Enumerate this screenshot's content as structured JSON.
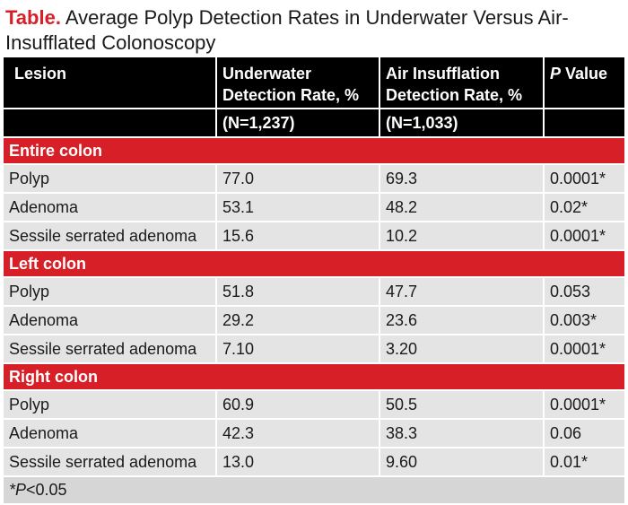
{
  "caption": {
    "lead": "Table.",
    "text": " Average Polyp Detection Rates in Underwater Versus Air-Insufflated Colonoscopy"
  },
  "header": {
    "col1": "Lesion",
    "col2": "Underwater Detection Rate, %",
    "col3": "Air Insufflation Detection Rate, %",
    "col4_italic": "P",
    "col4_rest": " Value",
    "n2": "(N=1,237)",
    "n3": "(N=1,033)"
  },
  "sections": [
    {
      "title": "Entire colon",
      "rows": [
        {
          "lesion": "Polyp",
          "underwater": "77.0",
          "air": "69.3",
          "p": "0.0001*"
        },
        {
          "lesion": "Adenoma",
          "underwater": "53.1",
          "air": "48.2",
          "p": "0.02*"
        },
        {
          "lesion": "Sessile serrated adenoma",
          "underwater": "15.6",
          "air": "10.2",
          "p": "0.0001*"
        }
      ]
    },
    {
      "title": "Left colon",
      "rows": [
        {
          "lesion": "Polyp",
          "underwater": "51.8",
          "air": "47.7",
          "p": "0.053"
        },
        {
          "lesion": "Adenoma",
          "underwater": "29.2",
          "air": "23.6",
          "p": "0.003*"
        },
        {
          "lesion": "Sessile serrated adenoma",
          "underwater": "7.10",
          "air": "3.20",
          "p": "0.0001*"
        }
      ]
    },
    {
      "title": "Right colon",
      "rows": [
        {
          "lesion": "Polyp",
          "underwater": "60.9",
          "air": "50.5",
          "p": "0.0001*"
        },
        {
          "lesion": "Adenoma",
          "underwater": "42.3",
          "air": "38.3",
          "p": "0.06"
        },
        {
          "lesion": "Sessile serrated adenoma",
          "underwater": "13.0",
          "air": "9.60",
          "p": "0.01*"
        }
      ]
    }
  ],
  "footnote": {
    "italic": "*P",
    "rest": "<0.05"
  },
  "colors": {
    "accent_red": "#d71f27",
    "header_black": "#000000",
    "row_gray": "#e4e4e5",
    "footer_gray": "#d6d6d7"
  }
}
